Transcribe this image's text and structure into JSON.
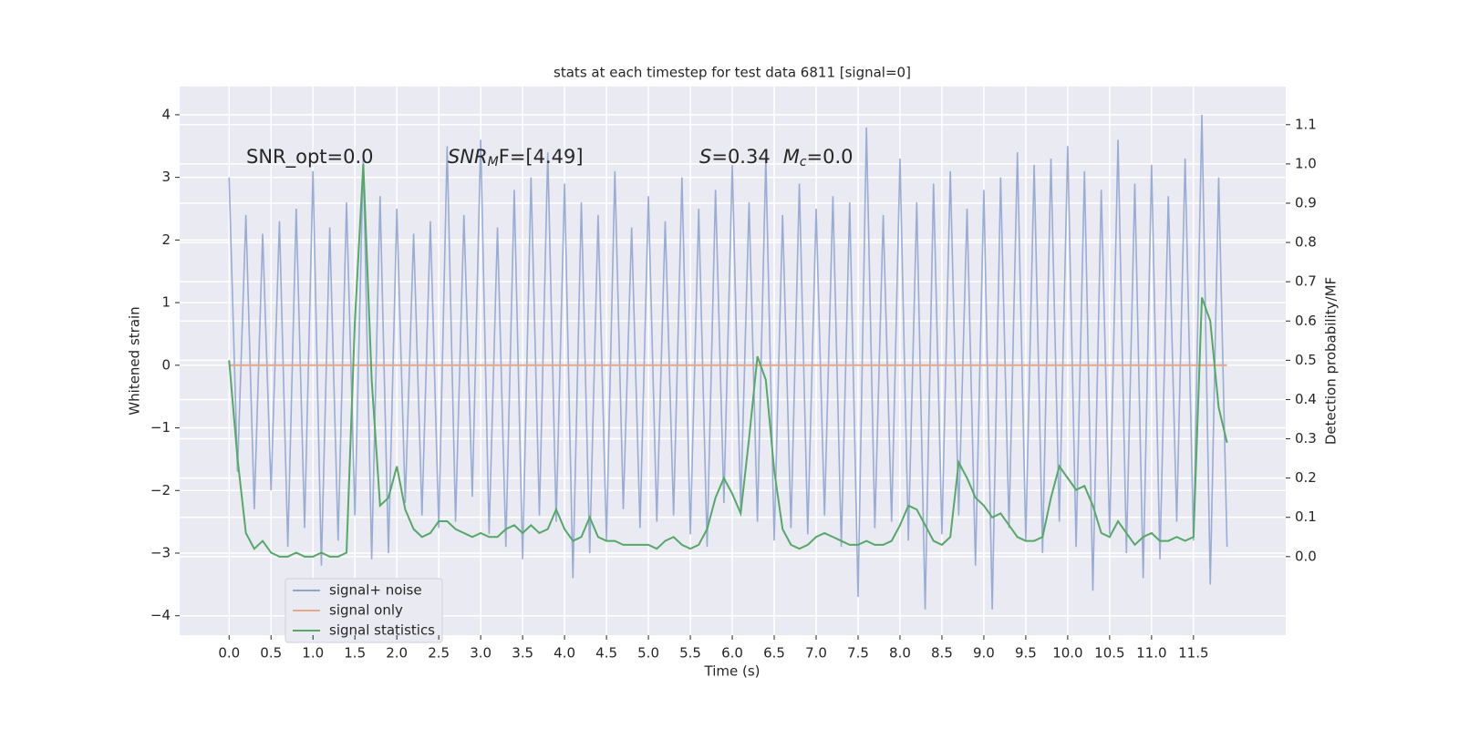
{
  "chart_data": {
    "type": "line",
    "title": "stats at each timestep for test data 6811 [signal=0]",
    "xlabel": "Time (s)",
    "ylabel": "Whitened strain",
    "y2label": "Detection probability/MF",
    "annotations": [
      "SNR_opt=0.0",
      [
        "SNR",
        "M",
        "F=[4.49]"
      ],
      [
        "S",
        "=0.34",
        "M",
        "c",
        "=0.0"
      ]
    ],
    "x": [
      0,
      0.1,
      0.2,
      0.3,
      0.4,
      0.5,
      0.6,
      0.7,
      0.8,
      0.9,
      1,
      1.1,
      1.2,
      1.3,
      1.4,
      1.5,
      1.6,
      1.7,
      1.8,
      1.9,
      2,
      2.1,
      2.2,
      2.3,
      2.4,
      2.5,
      2.6,
      2.7,
      2.8,
      2.9,
      3,
      3.1,
      3.2,
      3.3,
      3.4,
      3.5,
      3.6,
      3.7,
      3.8,
      3.9,
      4,
      4.1,
      4.2,
      4.3,
      4.4,
      4.5,
      4.6,
      4.7,
      4.8,
      4.9,
      5,
      5.1,
      5.2,
      5.3,
      5.4,
      5.5,
      5.6,
      5.7,
      5.8,
      5.9,
      6,
      6.1,
      6.2,
      6.3,
      6.4,
      6.5,
      6.6,
      6.7,
      6.8,
      6.9,
      7,
      7.1,
      7.2,
      7.3,
      7.4,
      7.5,
      7.6,
      7.7,
      7.8,
      7.9,
      8,
      8.1,
      8.2,
      8.3,
      8.4,
      8.5,
      8.6,
      8.7,
      8.8,
      8.9,
      9,
      9.1,
      9.2,
      9.3,
      9.4,
      9.5,
      9.6,
      9.7,
      9.8,
      9.9,
      10,
      10.1,
      10.2,
      10.3,
      10.4,
      10.5,
      10.6,
      10.7,
      10.8,
      10.9,
      11,
      11.1,
      11.2,
      11.3,
      11.4,
      11.5,
      11.6,
      11.7,
      11.8,
      11.9
    ],
    "series": [
      {
        "name": "signal+ noise",
        "color": "#8fa5d0",
        "values": [
          3.0,
          -1.7,
          2.4,
          -2.3,
          2.1,
          -2.0,
          2.3,
          -2.9,
          2.5,
          -2.6,
          3.1,
          -3.2,
          2.2,
          -2.8,
          2.6,
          -2.4,
          3.3,
          -3.1,
          2.7,
          -3.0,
          2.5,
          -2.2,
          2.1,
          -2.4,
          2.3,
          -2.6,
          3.5,
          -2.5,
          2.4,
          -2.1,
          3.6,
          -2.7,
          2.2,
          -2.9,
          2.8,
          -3.1,
          3.0,
          -2.4,
          3.4,
          -2.5,
          2.9,
          -3.4,
          2.6,
          -3.0,
          2.4,
          -2.8,
          3.1,
          -2.3,
          2.2,
          -2.6,
          2.7,
          -2.5,
          2.3,
          -2.4,
          3.0,
          -2.7,
          2.5,
          -2.9,
          2.8,
          -2.2,
          3.2,
          -2.3,
          2.6,
          -2.5,
          3.3,
          -2.8,
          2.4,
          -2.6,
          2.9,
          -2.7,
          2.5,
          -2.4,
          2.7,
          -2.9,
          2.6,
          -3.7,
          3.8,
          -2.6,
          2.4,
          -2.5,
          3.3,
          -2.8,
          2.6,
          -3.9,
          2.9,
          -2.7,
          3.1,
          -2.4,
          2.5,
          -3.2,
          2.8,
          -3.9,
          3.0,
          -2.6,
          3.4,
          -2.8,
          3.2,
          -3.0,
          3.3,
          -2.5,
          3.5,
          -2.9,
          3.1,
          -3.6,
          2.8,
          -2.7,
          3.6,
          -3.0,
          2.9,
          -3.4,
          3.2,
          -3.1,
          2.7,
          -2.5,
          3.3,
          -2.8,
          4.0,
          -3.5,
          3.0,
          -2.9
        ]
      },
      {
        "name": "signal only",
        "color": "#e8a88a",
        "values": [
          0,
          0,
          0,
          0,
          0,
          0,
          0,
          0,
          0,
          0,
          0,
          0,
          0,
          0,
          0,
          0,
          0,
          0,
          0,
          0,
          0,
          0,
          0,
          0,
          0,
          0,
          0,
          0,
          0,
          0,
          0,
          0,
          0,
          0,
          0,
          0,
          0,
          0,
          0,
          0,
          0,
          0,
          0,
          0,
          0,
          0,
          0,
          0,
          0,
          0,
          0,
          0,
          0,
          0,
          0,
          0,
          0,
          0,
          0,
          0,
          0,
          0,
          0,
          0,
          0,
          0,
          0,
          0,
          0,
          0,
          0,
          0,
          0,
          0,
          0,
          0,
          0,
          0,
          0,
          0,
          0,
          0,
          0,
          0,
          0,
          0,
          0,
          0,
          0,
          0,
          0,
          0,
          0,
          0,
          0,
          0,
          0,
          0,
          0,
          0,
          0,
          0,
          0,
          0,
          0,
          0,
          0,
          0,
          0,
          0,
          0,
          0,
          0,
          0,
          0,
          0,
          0,
          0,
          0,
          0
        ]
      },
      {
        "name": "signal statistics",
        "color": "#55a868",
        "axis": "y2",
        "values": [
          0.5,
          0.25,
          0.06,
          0.02,
          0.04,
          0.01,
          0.0,
          0.0,
          0.01,
          0.0,
          0.0,
          0.01,
          0.0,
          0.0,
          0.01,
          0.6,
          1.0,
          0.45,
          0.13,
          0.15,
          0.23,
          0.12,
          0.07,
          0.05,
          0.06,
          0.09,
          0.09,
          0.07,
          0.06,
          0.05,
          0.06,
          0.05,
          0.05,
          0.07,
          0.08,
          0.06,
          0.08,
          0.06,
          0.07,
          0.12,
          0.07,
          0.04,
          0.05,
          0.1,
          0.05,
          0.04,
          0.04,
          0.03,
          0.03,
          0.03,
          0.03,
          0.02,
          0.04,
          0.05,
          0.03,
          0.02,
          0.03,
          0.07,
          0.15,
          0.2,
          0.16,
          0.11,
          0.3,
          0.51,
          0.45,
          0.22,
          0.07,
          0.03,
          0.02,
          0.03,
          0.05,
          0.06,
          0.05,
          0.04,
          0.03,
          0.03,
          0.04,
          0.03,
          0.03,
          0.04,
          0.08,
          0.13,
          0.12,
          0.08,
          0.04,
          0.03,
          0.05,
          0.24,
          0.2,
          0.15,
          0.13,
          0.1,
          0.11,
          0.08,
          0.05,
          0.04,
          0.04,
          0.05,
          0.15,
          0.23,
          0.2,
          0.17,
          0.18,
          0.13,
          0.06,
          0.05,
          0.09,
          0.06,
          0.03,
          0.05,
          0.06,
          0.04,
          0.04,
          0.05,
          0.04,
          0.05,
          0.66,
          0.6,
          0.38,
          0.29
        ]
      }
    ],
    "xlim": [
      -0.59,
      12.6
    ],
    "xticks": [
      {
        "value": 0,
        "label": "0.0"
      },
      0.5,
      {
        "value": 1,
        "label": "1.0"
      },
      1.5,
      {
        "value": 2,
        "label": "2.0"
      },
      2.5,
      {
        "value": 3,
        "label": "3.0"
      },
      3.5,
      {
        "value": 4,
        "label": "4.0"
      },
      4.5,
      {
        "value": 5,
        "label": "5.0"
      },
      5.5,
      {
        "value": 6,
        "label": "6.0"
      },
      6.5,
      {
        "value": 7,
        "label": "7.0"
      },
      7.5,
      {
        "value": 8,
        "label": "8.0"
      },
      8.5,
      {
        "value": 9,
        "label": "9.0"
      },
      9.5,
      {
        "value": 10,
        "label": "10.0"
      },
      10.5,
      {
        "value": 11,
        "label": "11.0"
      },
      11.5
    ],
    "ylim": [
      -4.31,
      4.45
    ],
    "yticks": [
      {
        "value": -4,
        "label": "−4"
      },
      {
        "value": -3,
        "label": "−3"
      },
      {
        "value": -2,
        "label": "−2"
      },
      {
        "value": -1,
        "label": "−1"
      },
      0,
      1,
      2,
      3,
      4
    ],
    "y2lim": [
      -0.2,
      1.197
    ],
    "y2ticks": [
      {
        "value": 0,
        "label": "0.0"
      },
      0.1,
      0.2,
      0.3,
      0.4,
      0.5,
      0.6,
      0.7,
      0.8,
      0.9,
      {
        "value": 1,
        "label": "1.0"
      },
      1.1
    ],
    "grid": true,
    "legend": "lower left"
  }
}
